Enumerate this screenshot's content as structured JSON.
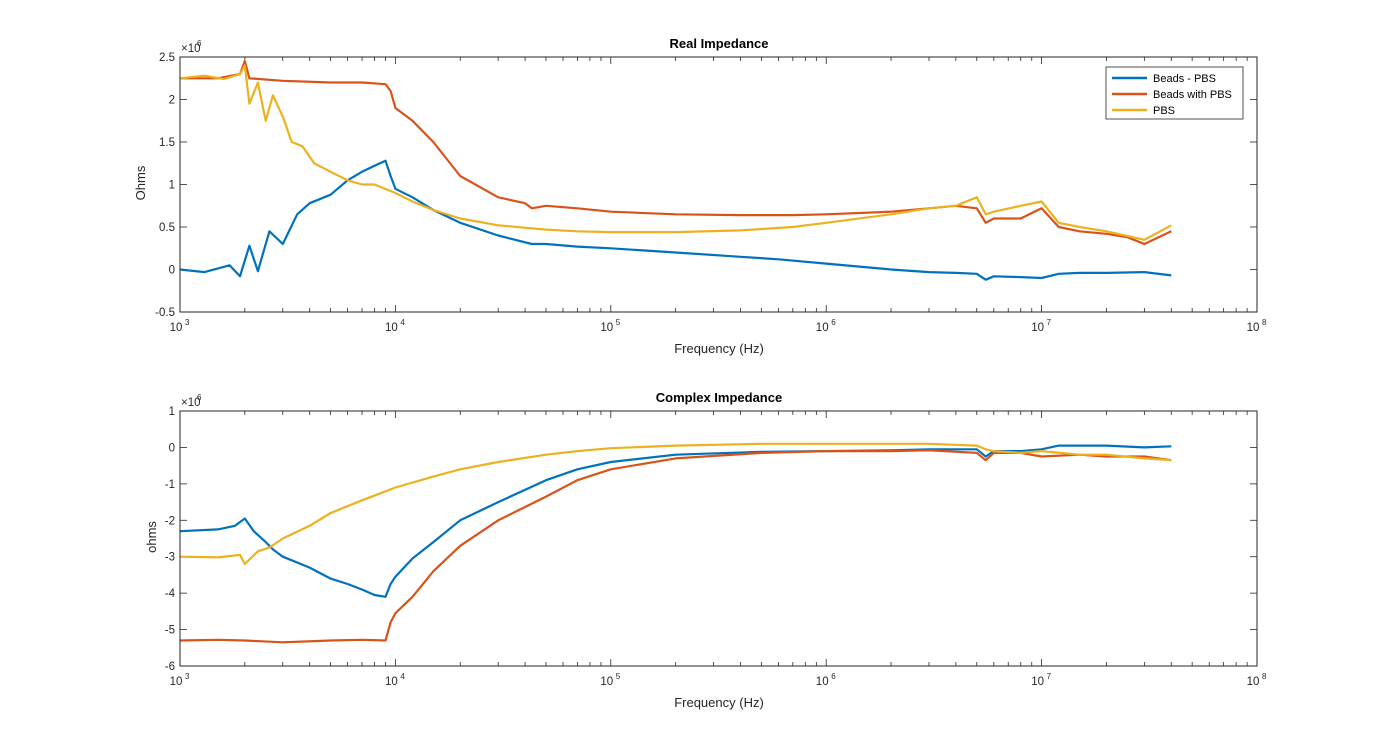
{
  "figure_colors": {
    "blue": "#0072BD",
    "orange": "#D95319",
    "yellow": "#EDB120"
  },
  "chart_data": [
    {
      "type": "line",
      "title": "Real Impedance",
      "xlabel": "Frequency (Hz)",
      "ylabel": "Ohms",
      "xscale": "log",
      "xlim": [
        1000,
        100000000
      ],
      "ylim": [
        -0.5,
        2.5
      ],
      "y_multiplier": "×10^6",
      "y_multiplier_base": "×10",
      "y_multiplier_exp": "6",
      "yticks": [
        "-0.5",
        "0",
        "0.5",
        "1",
        "1.5",
        "2",
        "2.5"
      ],
      "ytick_values": [
        -0.5,
        0,
        0.5,
        1,
        1.5,
        2,
        2.5
      ],
      "xticks": [
        {
          "base": "10",
          "exp": "3"
        },
        {
          "base": "10",
          "exp": "4"
        },
        {
          "base": "10",
          "exp": "5"
        },
        {
          "base": "10",
          "exp": "6"
        },
        {
          "base": "10",
          "exp": "7"
        },
        {
          "base": "10",
          "exp": "8"
        }
      ],
      "xtick_values": [
        1000,
        10000,
        100000,
        1000000,
        10000000,
        100000000
      ],
      "legend": "top-right",
      "series": [
        {
          "name": "Beads - PBS",
          "color": "#0072BD",
          "x": [
            1000,
            1300,
            1700,
            1900,
            2100,
            2300,
            2600,
            3000,
            3500,
            4000,
            5000,
            6000,
            7000,
            8000,
            9000,
            9500,
            10000,
            12000,
            15000,
            20000,
            30000,
            43000,
            50000,
            70000,
            100000,
            200000,
            400000,
            600000,
            1000000,
            2000000,
            3000000,
            4000000,
            5000000,
            5500000,
            6000000,
            8000000,
            10000000,
            12000000,
            15000000,
            20000000,
            30000000,
            40000000
          ],
          "y": [
            0.0,
            -0.03,
            0.05,
            -0.08,
            0.28,
            -0.02,
            0.45,
            0.3,
            0.65,
            0.78,
            0.88,
            1.05,
            1.15,
            1.22,
            1.28,
            1.1,
            0.95,
            0.85,
            0.7,
            0.55,
            0.4,
            0.3,
            0.3,
            0.27,
            0.25,
            0.2,
            0.15,
            0.12,
            0.07,
            0.0,
            -0.03,
            -0.04,
            -0.05,
            -0.12,
            -0.08,
            -0.09,
            -0.1,
            -0.05,
            -0.04,
            -0.04,
            -0.03,
            -0.07
          ]
        },
        {
          "name": "Beads with PBS",
          "color": "#D95319",
          "x": [
            1000,
            1500,
            1900,
            2000,
            2100,
            3000,
            5000,
            7000,
            9000,
            9500,
            10000,
            12000,
            15000,
            20000,
            30000,
            40000,
            43000,
            50000,
            70000,
            100000,
            200000,
            400000,
            700000,
            1000000,
            2000000,
            3000000,
            4000000,
            5000000,
            5500000,
            6000000,
            8000000,
            10000000,
            12000000,
            15000000,
            20000000,
            25000000,
            30000000,
            40000000
          ],
          "y": [
            2.25,
            2.25,
            2.3,
            2.45,
            2.25,
            2.22,
            2.2,
            2.2,
            2.18,
            2.1,
            1.9,
            1.75,
            1.5,
            1.1,
            0.85,
            0.78,
            0.72,
            0.75,
            0.72,
            0.68,
            0.65,
            0.64,
            0.64,
            0.65,
            0.68,
            0.72,
            0.75,
            0.72,
            0.55,
            0.6,
            0.6,
            0.72,
            0.5,
            0.45,
            0.42,
            0.38,
            0.3,
            0.45
          ]
        },
        {
          "name": "PBS",
          "color": "#EDB120",
          "x": [
            1000,
            1300,
            1600,
            1900,
            2000,
            2100,
            2300,
            2500,
            2700,
            3000,
            3300,
            3700,
            4200,
            5000,
            6000,
            7000,
            8000,
            10000,
            12000,
            15000,
            20000,
            30000,
            50000,
            70000,
            100000,
            200000,
            400000,
            700000,
            1000000,
            2000000,
            3000000,
            4000000,
            5000000,
            5500000,
            6000000,
            8000000,
            10000000,
            12000000,
            15000000,
            20000000,
            30000000,
            40000000
          ],
          "y": [
            2.25,
            2.28,
            2.24,
            2.3,
            2.4,
            1.95,
            2.2,
            1.75,
            2.05,
            1.8,
            1.5,
            1.45,
            1.25,
            1.15,
            1.05,
            1.0,
            1.0,
            0.9,
            0.8,
            0.7,
            0.6,
            0.52,
            0.47,
            0.45,
            0.44,
            0.44,
            0.46,
            0.5,
            0.55,
            0.65,
            0.72,
            0.75,
            0.85,
            0.65,
            0.68,
            0.75,
            0.8,
            0.55,
            0.5,
            0.45,
            0.35,
            0.52
          ]
        }
      ]
    },
    {
      "type": "line",
      "title": "Complex Impedance",
      "xlabel": "Frequency (Hz)",
      "ylabel": "ohms",
      "xscale": "log",
      "xlim": [
        1000,
        100000000
      ],
      "ylim": [
        -6,
        1
      ],
      "y_multiplier": "×10^6",
      "y_multiplier_base": "×10",
      "y_multiplier_exp": "6",
      "yticks": [
        "-6",
        "-5",
        "-4",
        "-3",
        "-2",
        "-1",
        "0",
        "1"
      ],
      "ytick_values": [
        -6,
        -5,
        -4,
        -3,
        -2,
        -1,
        0,
        1
      ],
      "xticks": [
        {
          "base": "10",
          "exp": "3"
        },
        {
          "base": "10",
          "exp": "4"
        },
        {
          "base": "10",
          "exp": "5"
        },
        {
          "base": "10",
          "exp": "6"
        },
        {
          "base": "10",
          "exp": "7"
        },
        {
          "base": "10",
          "exp": "8"
        }
      ],
      "xtick_values": [
        1000,
        10000,
        100000,
        1000000,
        10000000,
        100000000
      ],
      "series": [
        {
          "name": "Beads - PBS",
          "color": "#0072BD",
          "x": [
            1000,
            1500,
            1800,
            2000,
            2200,
            2500,
            2700,
            3000,
            4000,
            5000,
            6000,
            7000,
            8000,
            9000,
            9500,
            10000,
            12000,
            15000,
            20000,
            30000,
            50000,
            70000,
            100000,
            200000,
            500000,
            1000000,
            2000000,
            3000000,
            5000000,
            5500000,
            6000000,
            8000000,
            10000000,
            12000000,
            20000000,
            30000000,
            40000000
          ],
          "y": [
            -2.3,
            -2.25,
            -2.15,
            -1.95,
            -2.3,
            -2.6,
            -2.8,
            -3.0,
            -3.3,
            -3.6,
            -3.75,
            -3.9,
            -4.05,
            -4.1,
            -3.75,
            -3.55,
            -3.05,
            -2.6,
            -2.0,
            -1.5,
            -0.9,
            -0.6,
            -0.4,
            -0.2,
            -0.12,
            -0.1,
            -0.08,
            -0.05,
            -0.05,
            -0.25,
            -0.1,
            -0.1,
            -0.05,
            0.05,
            0.05,
            0.0,
            0.03
          ]
        },
        {
          "name": "Beads with PBS",
          "color": "#D95319",
          "x": [
            1000,
            1500,
            2000,
            3000,
            5000,
            7000,
            9000,
            9500,
            10000,
            12000,
            15000,
            20000,
            30000,
            50000,
            70000,
            100000,
            200000,
            500000,
            1000000,
            2000000,
            3000000,
            5000000,
            5500000,
            6000000,
            8000000,
            10000000,
            15000000,
            20000000,
            30000000,
            40000000
          ],
          "y": [
            -5.3,
            -5.28,
            -5.3,
            -5.35,
            -5.3,
            -5.28,
            -5.3,
            -4.8,
            -4.55,
            -4.1,
            -3.4,
            -2.7,
            -2.0,
            -1.35,
            -0.9,
            -0.6,
            -0.3,
            -0.15,
            -0.1,
            -0.1,
            -0.08,
            -0.15,
            -0.35,
            -0.15,
            -0.15,
            -0.25,
            -0.2,
            -0.25,
            -0.25,
            -0.35
          ]
        },
        {
          "name": "PBS",
          "color": "#EDB120",
          "x": [
            1000,
            1500,
            1900,
            2000,
            2300,
            2600,
            3000,
            4000,
            5000,
            7000,
            10000,
            15000,
            20000,
            30000,
            50000,
            70000,
            100000,
            200000,
            500000,
            1000000,
            2000000,
            3000000,
            5000000,
            5500000,
            6000000,
            8000000,
            10000000,
            15000000,
            20000000,
            30000000,
            40000000
          ],
          "y": [
            -3.0,
            -3.02,
            -2.95,
            -3.2,
            -2.85,
            -2.75,
            -2.5,
            -2.15,
            -1.8,
            -1.45,
            -1.1,
            -0.8,
            -0.6,
            -0.4,
            -0.2,
            -0.1,
            -0.02,
            0.05,
            0.1,
            0.1,
            0.1,
            0.1,
            0.05,
            -0.05,
            -0.1,
            -0.15,
            -0.1,
            -0.2,
            -0.2,
            -0.3,
            -0.35
          ]
        }
      ]
    }
  ]
}
